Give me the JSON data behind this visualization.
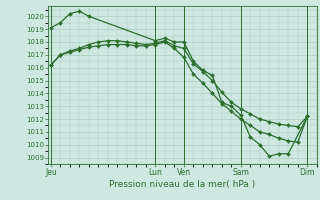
{
  "background_color": "#cce8e0",
  "grid_color": "#aaccc4",
  "line_color": "#2d6e2d",
  "title": "Pression niveau de la mer( hPa )",
  "ylim": [
    1008.5,
    1020.8
  ],
  "yticks": [
    1009,
    1010,
    1011,
    1012,
    1013,
    1014,
    1015,
    1016,
    1017,
    1018,
    1019,
    1020
  ],
  "xtick_labels": [
    "Jeu",
    "Lun",
    "Ven",
    "Sam",
    "Dim"
  ],
  "xtick_positions": [
    0,
    11,
    14,
    20,
    27
  ],
  "xmax": 28,
  "series1_x": [
    0,
    1,
    2,
    3,
    4,
    11,
    12,
    13,
    14,
    15,
    16,
    17,
    18,
    19,
    20,
    21,
    22,
    23,
    24,
    25,
    27
  ],
  "series1_y": [
    1019.1,
    1019.5,
    1020.2,
    1020.4,
    1020.0,
    1018.1,
    1018.3,
    1018.0,
    1018.0,
    1016.5,
    1015.8,
    1015.4,
    1013.3,
    1013.0,
    1012.3,
    1010.6,
    1010.0,
    1009.1,
    1009.3,
    1009.3,
    1012.2
  ],
  "series2_x": [
    0,
    1,
    2,
    3,
    4,
    5,
    6,
    7,
    8,
    9,
    10,
    11,
    12,
    13,
    14,
    15,
    16,
    17,
    18,
    19,
    20,
    21,
    22,
    23,
    24,
    25,
    26,
    27
  ],
  "series2_y": [
    1016.2,
    1017.0,
    1017.3,
    1017.5,
    1017.8,
    1018.0,
    1018.1,
    1018.1,
    1018.0,
    1017.9,
    1017.8,
    1017.9,
    1018.1,
    1017.7,
    1017.5,
    1016.3,
    1015.7,
    1015.0,
    1014.1,
    1013.3,
    1012.8,
    1012.4,
    1012.0,
    1011.8,
    1011.6,
    1011.5,
    1011.4,
    1012.2
  ],
  "series3_x": [
    0,
    1,
    2,
    3,
    4,
    5,
    6,
    7,
    8,
    9,
    10,
    11,
    12,
    13,
    14,
    15,
    16,
    17,
    18,
    19,
    20,
    21,
    22,
    23,
    24,
    25,
    26,
    27
  ],
  "series3_y": [
    1016.2,
    1017.0,
    1017.2,
    1017.4,
    1017.6,
    1017.7,
    1017.8,
    1017.8,
    1017.8,
    1017.7,
    1017.7,
    1017.8,
    1018.0,
    1017.5,
    1016.8,
    1015.5,
    1014.8,
    1014.0,
    1013.2,
    1012.6,
    1012.0,
    1011.5,
    1011.0,
    1010.8,
    1010.5,
    1010.3,
    1010.2,
    1012.2
  ]
}
